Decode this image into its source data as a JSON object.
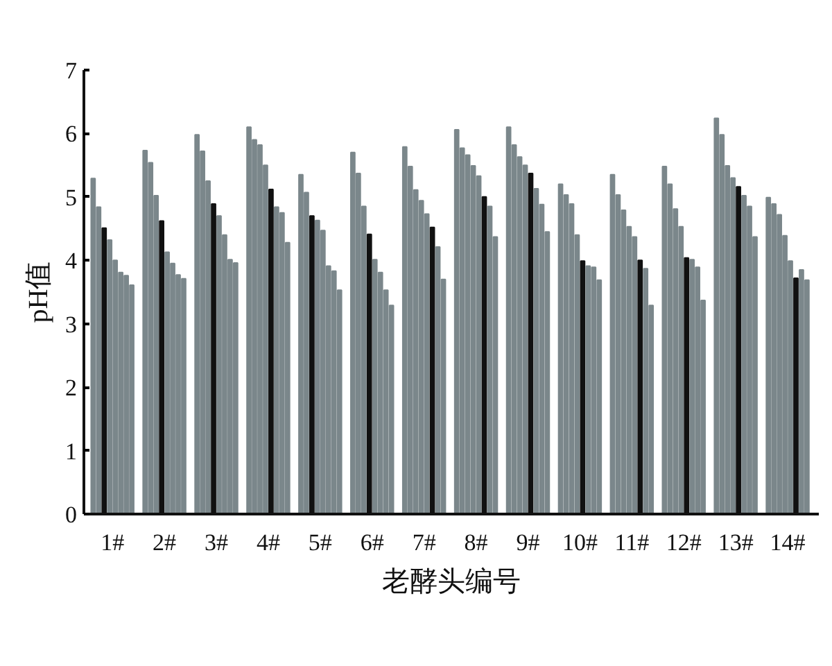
{
  "chart_data": {
    "type": "bar",
    "xlabel": "老酵头编号",
    "ylabel": "pH值",
    "categories": [
      "1#",
      "2#",
      "3#",
      "4#",
      "5#",
      "6#",
      "7#",
      "8#",
      "9#",
      "10#",
      "11#",
      "12#",
      "13#",
      "14#"
    ],
    "series": [
      {
        "colors": [
          "#7b878b",
          "#7b878b",
          "#7b878b",
          "#7b878b",
          "#7b878b",
          "#7b878b",
          "#7b878b",
          "#7b878b",
          "#7b878b",
          "#7b878b",
          "#7b878b",
          "#7b878b",
          "#7b878b",
          "#7b878b"
        ],
        "values": [
          5.29,
          5.73,
          5.98,
          6.1,
          5.35,
          5.7,
          5.79,
          6.06,
          6.1,
          5.2,
          5.35,
          5.48,
          6.24,
          4.99
        ]
      },
      {
        "colors": [
          "#7b878b",
          "#7b878b",
          "#7b878b",
          "#7b878b",
          "#7b878b",
          "#7b878b",
          "#7b878b",
          "#7b878b",
          "#7b878b",
          "#7b878b",
          "#7b878b",
          "#7b878b",
          "#7b878b",
          "#7b878b"
        ],
        "values": [
          4.84,
          5.54,
          5.72,
          5.9,
          5.07,
          5.37,
          5.48,
          5.77,
          5.82,
          5.03,
          5.03,
          5.2,
          5.98,
          4.89
        ]
      },
      {
        "colors": [
          "#111111",
          "#7b878b",
          "#7b878b",
          "#7b878b",
          "#111111",
          "#7b878b",
          "#7b878b",
          "#7b878b",
          "#7b878b",
          "#7b878b",
          "#7b878b",
          "#7b878b",
          "#7b878b",
          "#7b878b"
        ],
        "values": [
          4.51,
          5.02,
          5.25,
          5.82,
          4.7,
          4.85,
          5.11,
          5.66,
          5.63,
          4.89,
          4.79,
          4.81,
          5.49,
          4.72
        ]
      },
      {
        "colors": [
          "#7b878b",
          "#111111",
          "#111111",
          "#7b878b",
          "#7b878b",
          "#111111",
          "#7b878b",
          "#7b878b",
          "#7b878b",
          "#7b878b",
          "#7b878b",
          "#7b878b",
          "#7b878b",
          "#7b878b"
        ],
        "values": [
          4.32,
          4.62,
          4.89,
          5.5,
          4.63,
          4.41,
          4.94,
          5.49,
          5.5,
          4.4,
          4.53,
          4.53,
          5.3,
          4.39
        ]
      },
      {
        "colors": [
          "#7b878b",
          "#7b878b",
          "#7b878b",
          "#111111",
          "#7b878b",
          "#7b878b",
          "#7b878b",
          "#7b878b",
          "#111111",
          "#111111",
          "#7b878b",
          "#111111",
          "#111111",
          "#7b878b"
        ],
        "values": [
          4.0,
          4.13,
          4.7,
          5.12,
          4.47,
          4.01,
          4.73,
          5.33,
          5.37,
          3.99,
          4.37,
          4.04,
          5.16,
          3.99
        ]
      },
      {
        "colors": [
          "#7b878b",
          "#7b878b",
          "#7b878b",
          "#7b878b",
          "#7b878b",
          "#7b878b",
          "#111111",
          "#111111",
          "#7b878b",
          "#7b878b",
          "#111111",
          "#7b878b",
          "#7b878b",
          "#111111"
        ],
        "values": [
          3.81,
          3.95,
          4.4,
          4.84,
          3.91,
          3.81,
          4.52,
          5.0,
          5.13,
          3.91,
          4.0,
          4.01,
          5.02,
          3.72
        ]
      },
      {
        "colors": [
          "#7b878b",
          "#7b878b",
          "#7b878b",
          "#7b878b",
          "#7b878b",
          "#7b878b",
          "#7b878b",
          "#7b878b",
          "#7b878b",
          "#7b878b",
          "#7b878b",
          "#7b878b",
          "#7b878b",
          "#7b878b"
        ],
        "values": [
          3.76,
          3.77,
          4.01,
          4.75,
          3.83,
          3.53,
          4.21,
          4.85,
          4.88,
          3.89,
          3.87,
          3.89,
          4.85,
          3.85
        ]
      },
      {
        "colors": [
          "#7b878b",
          "#7b878b",
          "#7b878b",
          "#7b878b",
          "#7b878b",
          "#7b878b",
          "#7b878b",
          "#7b878b",
          "#7b878b",
          "#7b878b",
          "#7b878b",
          "#7b878b",
          "#7b878b",
          "#7b878b"
        ],
        "values": [
          3.61,
          3.71,
          3.96,
          4.28,
          3.53,
          3.29,
          3.7,
          4.37,
          4.45,
          3.69,
          3.29,
          3.37,
          4.37,
          3.69
        ]
      }
    ],
    "ylim": [
      0,
      7
    ],
    "yticks": [
      0,
      1,
      2,
      3,
      4,
      5,
      6,
      7
    ],
    "grid": false
  }
}
